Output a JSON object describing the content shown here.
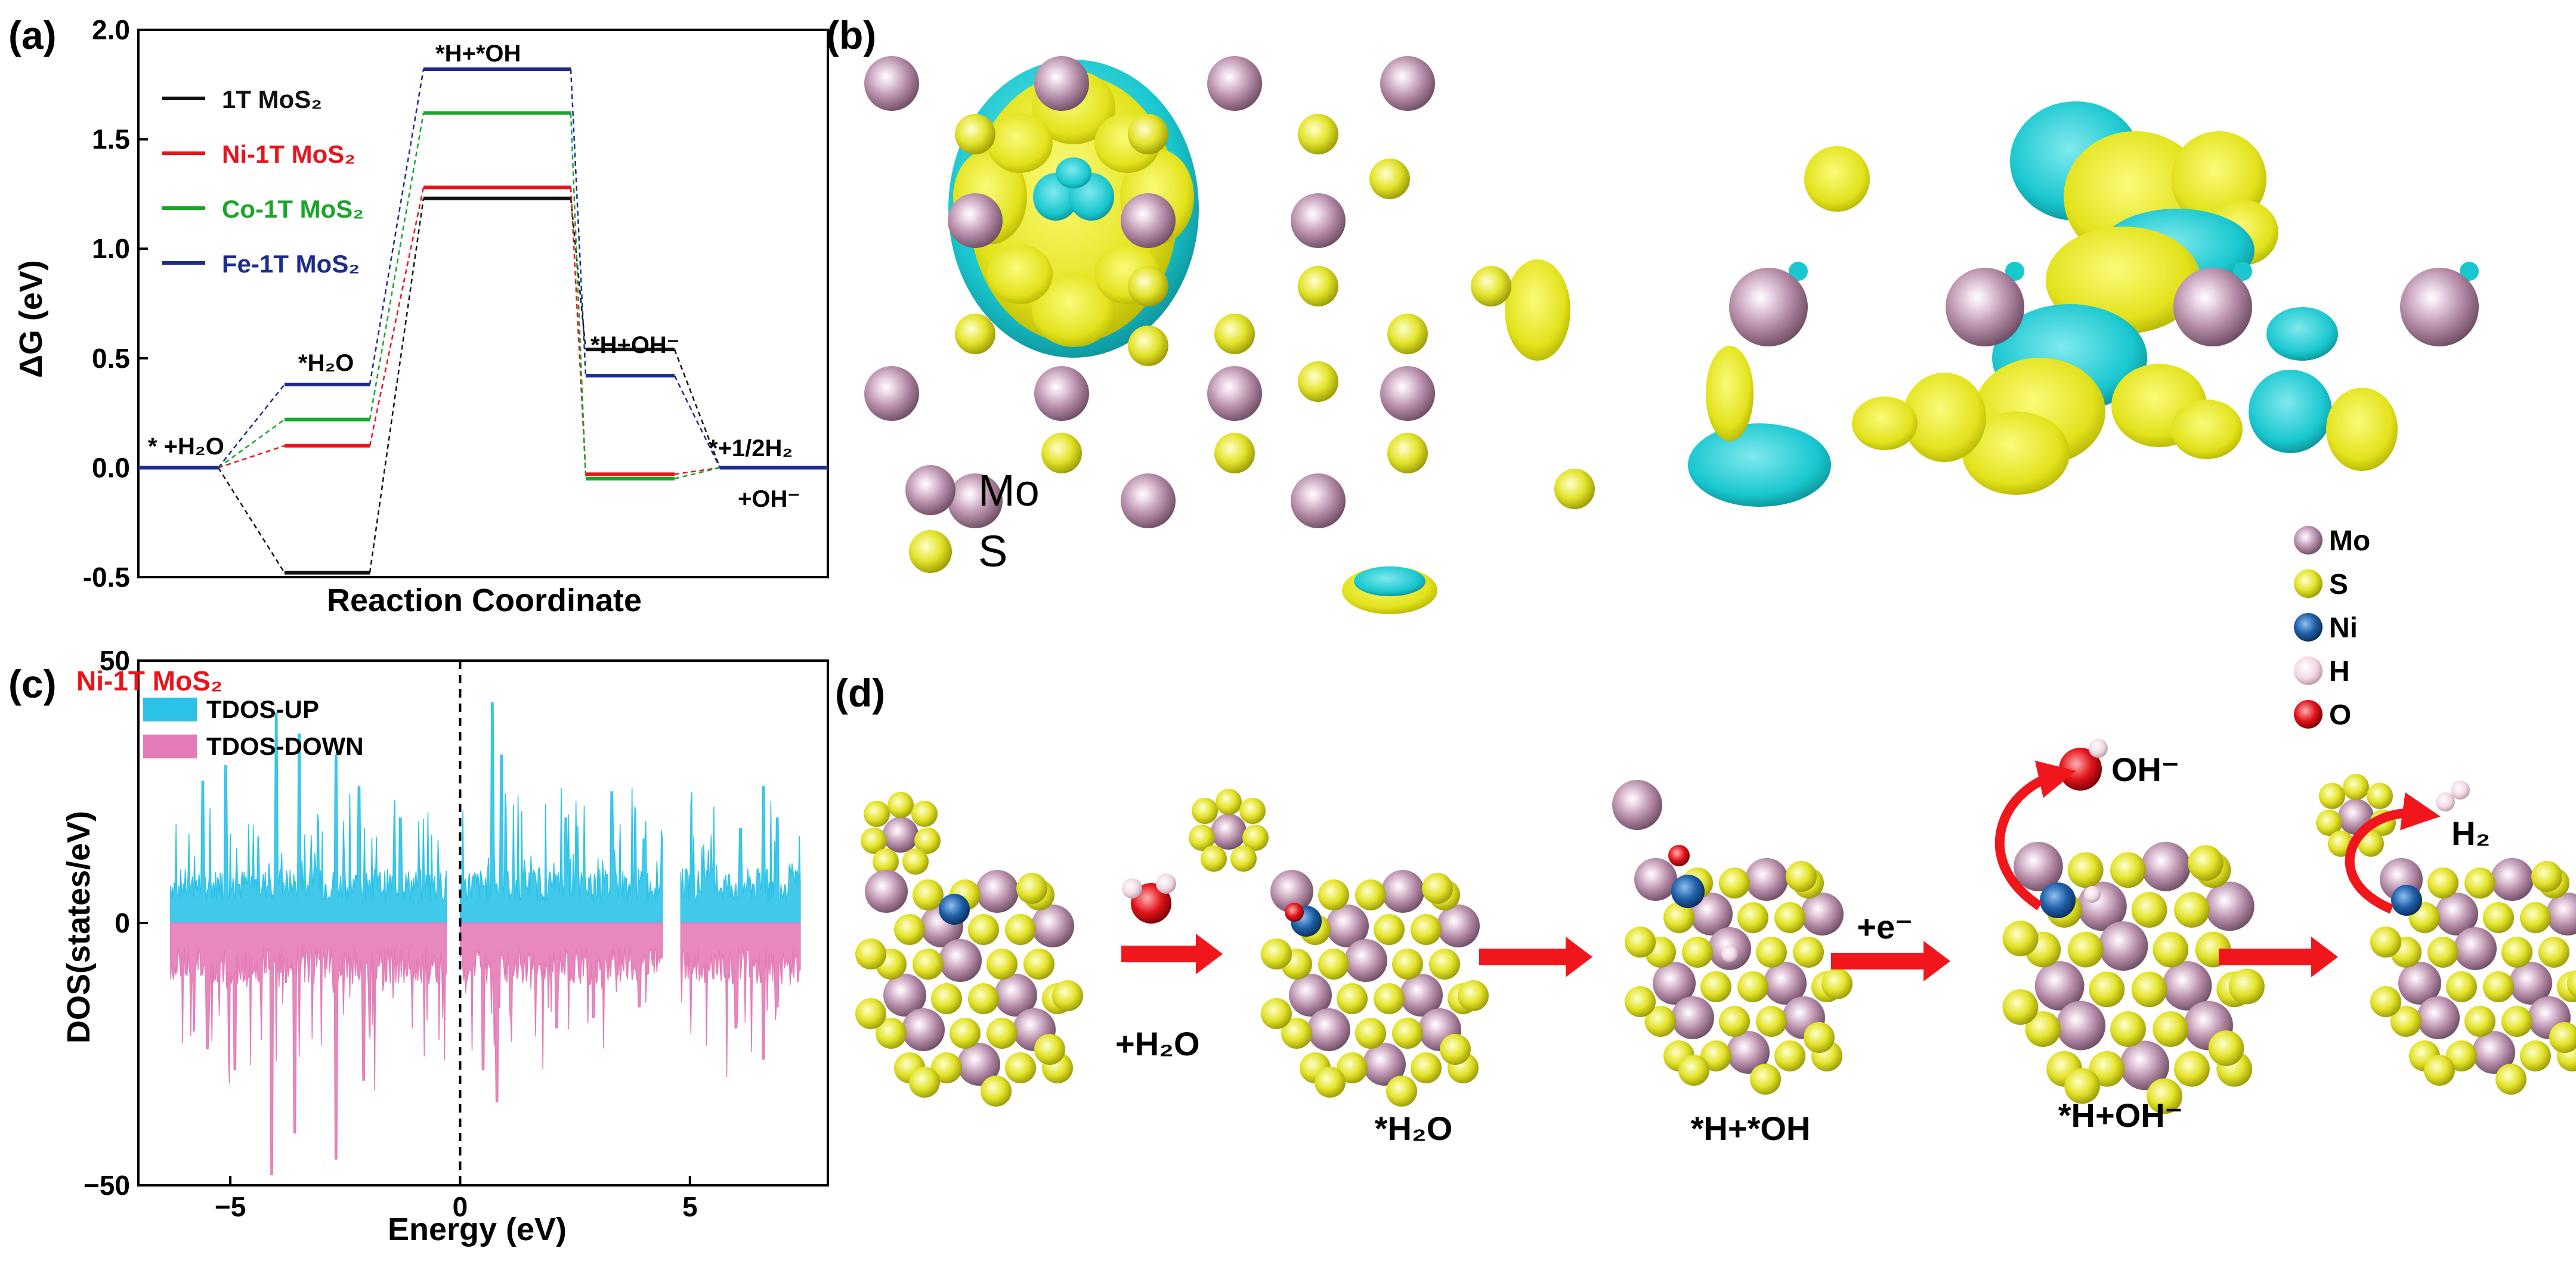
{
  "panels": {
    "a": "(a)",
    "b": "(b)",
    "c": "(c)",
    "d": "(d)"
  },
  "chart_data": [
    {
      "type": "line",
      "panel": "(a)",
      "xlabel": "Reaction Coordinate",
      "ylabel": "ΔG (eV)",
      "ylim": [
        -0.5,
        2.0
      ],
      "yticks": [
        "-0.5",
        "0.0",
        "0.5",
        "1.0",
        "1.5",
        "2.0"
      ],
      "categories": [
        "* +H2O",
        "*H2O",
        "*H+*OH",
        "*H+OH-",
        "*+1/2H2 +OH-"
      ],
      "state_labels": {
        "s0": "* +H₂O",
        "s1": "*H₂O",
        "s2": "*H+*OH",
        "s3": "*H+OH⁻",
        "s4a": "*+1/2H₂",
        "s4b": "+OH⁻"
      },
      "series": [
        {
          "name": "1T MoS₂",
          "color": "#111111",
          "values": [
            0.0,
            -0.48,
            1.23,
            0.54,
            0.0
          ]
        },
        {
          "name": "Ni-1T MoS₂",
          "color": "#e8141c",
          "values": [
            0.0,
            0.1,
            1.28,
            -0.03,
            0.0
          ]
        },
        {
          "name": "Co-1T MoS₂",
          "color": "#1aa52a",
          "values": [
            0.0,
            0.22,
            1.62,
            -0.05,
            0.0
          ]
        },
        {
          "name": "Fe-1T MoS₂",
          "color": "#1c2b8e",
          "values": [
            0.0,
            0.38,
            1.82,
            0.42,
            0.0
          ]
        }
      ],
      "legend_position": "top-left",
      "grid": false
    },
    {
      "type": "area",
      "panel": "(c)",
      "title": "Ni-1T MoS₂",
      "xlabel": "Energy (eV)",
      "ylabel": "DOS(states/eV)",
      "xlim": [
        -7,
        8
      ],
      "ylim": [
        -50,
        50
      ],
      "xticks": [
        "−5",
        "0",
        "5"
      ],
      "yticks": [
        "50",
        "0",
        "−50"
      ],
      "fermi_level": 0,
      "series": [
        {
          "name": "TDOS-UP",
          "color": "#2cc2e8",
          "segments": [
            [
              -6.3,
              -0.3
            ],
            [
              0.0,
              4.4
            ],
            [
              4.8,
              7.4
            ]
          ],
          "typical": 8,
          "peaks": [
            [
              -5.6,
              27
            ],
            [
              -5.1,
              30
            ],
            [
              -4.0,
              40
            ],
            [
              -3.5,
              36
            ],
            [
              -2.7,
              32
            ],
            [
              -2.2,
              26
            ],
            [
              -1.3,
              20
            ],
            [
              0.7,
              42
            ],
            [
              0.9,
              32
            ],
            [
              2.3,
              20
            ],
            [
              3.3,
              25
            ],
            [
              4.0,
              16
            ],
            [
              6.1,
              18
            ],
            [
              6.6,
              26
            ],
            [
              6.9,
              20
            ]
          ]
        },
        {
          "name": "TDOS-DOWN",
          "color": "#e47bb7",
          "segments": [
            [
              -6.3,
              -0.3
            ],
            [
              0.0,
              4.4
            ],
            [
              4.8,
              7.4
            ]
          ],
          "typical": -9,
          "peaks": [
            [
              -5.5,
              -24
            ],
            [
              -4.9,
              -28
            ],
            [
              -4.1,
              -48
            ],
            [
              -3.6,
              -40
            ],
            [
              -2.7,
              -45
            ],
            [
              -2.1,
              -30
            ],
            [
              -0.2,
              -12
            ],
            [
              0.5,
              -28
            ],
            [
              0.8,
              -34
            ],
            [
              2.1,
              -20
            ],
            [
              2.9,
              -18
            ],
            [
              3.9,
              -16
            ],
            [
              6.0,
              -20
            ],
            [
              6.6,
              -26
            ],
            [
              6.9,
              -16
            ]
          ]
        }
      ]
    }
  ],
  "panel_b": {
    "legend": [
      "Mo",
      "S"
    ]
  },
  "panel_d": {
    "legend": [
      "Mo",
      "S",
      "Ni",
      "H",
      "O"
    ],
    "labels": {
      "h2o_reactant": "+H₂O",
      "state1": "*H₂O",
      "state2": "*H+*OH",
      "electron": "+e⁻",
      "state3": "*H+OH⁻",
      "oh_product": "OH⁻",
      "h2_product": "H₂"
    }
  },
  "colors": {
    "mo": "#b48aa6",
    "s": "#e3e32a",
    "ni": "#1f5fa8",
    "h": "#f2d8e6",
    "o": "#e3141c",
    "cyan_lobe": "#19c7cf",
    "arrow": "#f0161c"
  }
}
